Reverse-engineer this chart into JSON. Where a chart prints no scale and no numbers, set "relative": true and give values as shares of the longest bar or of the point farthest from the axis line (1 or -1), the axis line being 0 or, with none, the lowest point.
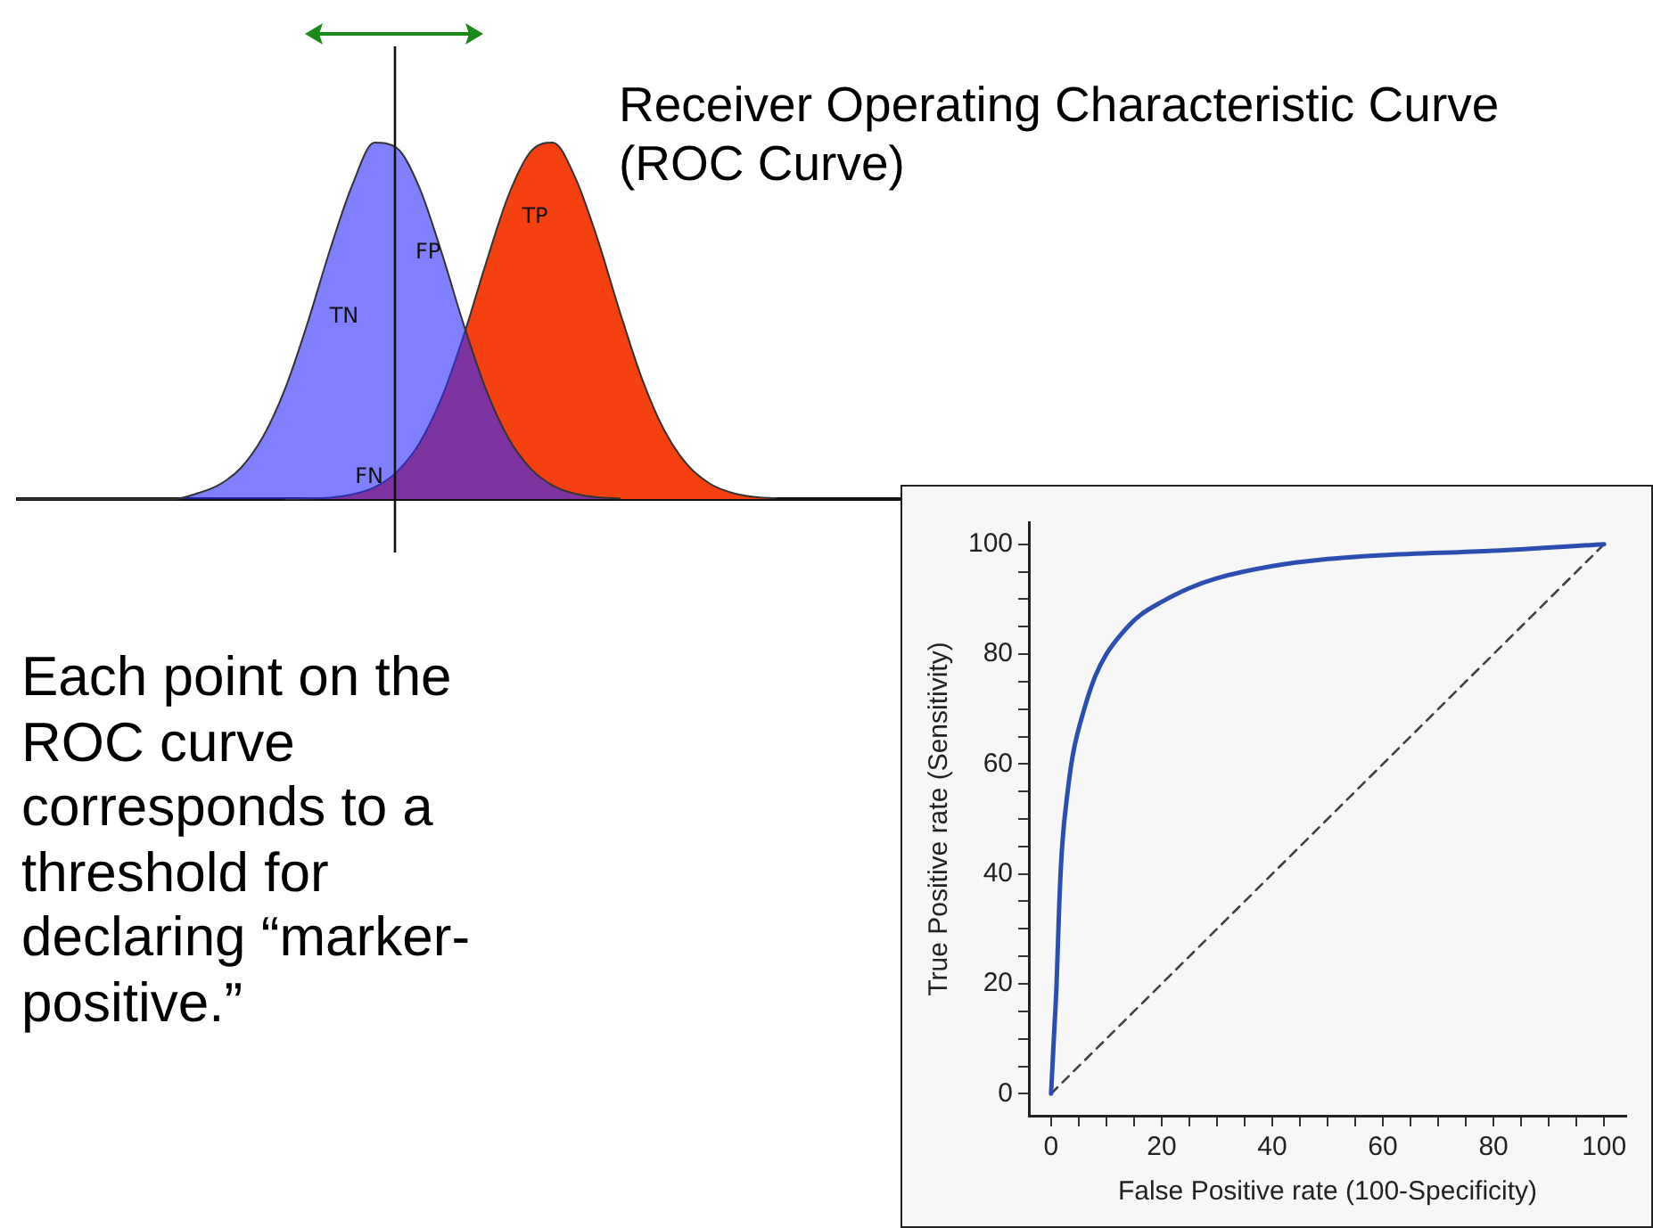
{
  "chart_data": [
    {
      "type": "area",
      "relative": true,
      "legend": false,
      "marker": "none",
      "categories": [
        null,
        null,
        null,
        null,
        null,
        null,
        null,
        null,
        null,
        null,
        null,
        null,
        null,
        null,
        null,
        null,
        null,
        null,
        null,
        null,
        null,
        null,
        null,
        null,
        null,
        null,
        null,
        null,
        null,
        null,
        null,
        null,
        null,
        null,
        null,
        null,
        null,
        null,
        null,
        null,
        null
      ],
      "series": [
        {
          "color": "#8080ff",
          "values": [
            0,
            0,
            0,
            0,
            0,
            0,
            0,
            0,
            0.015,
            0.039,
            0.087,
            0.175,
            0.311,
            0.494,
            0.698,
            0.88,
            1,
            0.985,
            0.876,
            0.694,
            0.49,
            0.308,
            0.172,
            0.086,
            0.038,
            0.015,
            0.005,
            0.002,
            null,
            null,
            null,
            null,
            null,
            null,
            null,
            null,
            null,
            null,
            null,
            null,
            null
          ]
        },
        {
          "color": "#f54010",
          "values": [
            null,
            null,
            null,
            null,
            null,
            null,
            null,
            null,
            null,
            null,
            null,
            null,
            0,
            0.001,
            0.004,
            0.013,
            0.033,
            0.076,
            0.155,
            0.282,
            0.458,
            0.661,
            0.85,
            0.974,
            1,
            0.903,
            0.731,
            0.527,
            0.338,
            0.193,
            0.099,
            0.045,
            0.018,
            0.006,
            0.002,
            null,
            null,
            null,
            null,
            null,
            null
          ]
        }
      ],
      "annotations": [
        "TN",
        "FP",
        "TP",
        "FN"
      ]
    },
    {
      "type": "line",
      "title": "Receiver Operating Characteristic Curve (ROC Curve)",
      "xlabel": "False Positive rate (100-Specificity)",
      "ylabel": "True Positive rate (Sensitivity)",
      "xlim": [
        -4,
        104
      ],
      "ylim": [
        -4,
        104
      ],
      "xticks": [
        0,
        {
          "value": 5,
          "label": null
        },
        {
          "value": 10,
          "label": null
        },
        {
          "value": 15,
          "label": null
        },
        20,
        {
          "value": 25,
          "label": null
        },
        {
          "value": 30,
          "label": null
        },
        {
          "value": 35,
          "label": null
        },
        40,
        {
          "value": 45,
          "label": null
        },
        {
          "value": 50,
          "label": null
        },
        {
          "value": 55,
          "label": null
        },
        60,
        {
          "value": 65,
          "label": null
        },
        {
          "value": 70,
          "label": null
        },
        {
          "value": 75,
          "label": null
        },
        80,
        {
          "value": 85,
          "label": null
        },
        {
          "value": 90,
          "label": null
        },
        {
          "value": 95,
          "label": null
        },
        100
      ],
      "yticks": [
        0,
        {
          "value": 5,
          "label": null
        },
        {
          "value": 10,
          "label": null
        },
        {
          "value": 15,
          "label": null
        },
        20,
        {
          "value": 25,
          "label": null
        },
        {
          "value": 30,
          "label": null
        },
        {
          "value": 35,
          "label": null
        },
        40,
        {
          "value": 45,
          "label": null
        },
        {
          "value": 50,
          "label": null
        },
        {
          "value": 55,
          "label": null
        },
        60,
        {
          "value": 65,
          "label": null
        },
        {
          "value": 70,
          "label": null
        },
        {
          "value": 75,
          "label": null
        },
        80,
        {
          "value": 85,
          "label": null
        },
        {
          "value": 90,
          "label": null
        },
        {
          "value": 95,
          "label": null
        },
        100
      ],
      "grid": false,
      "legend": false,
      "marker": "none",
      "series": [
        {
          "color": "#2a4fb0",
          "line_style": "solid",
          "x": [
            0,
            0.5,
            1,
            1.5,
            2,
            3,
            4,
            6,
            8,
            10,
            13,
            16,
            20,
            25,
            30,
            40,
            50,
            60,
            80,
            100
          ],
          "values": [
            0,
            10,
            20,
            35,
            45,
            55,
            62,
            70,
            76,
            80,
            84,
            87,
            89.5,
            92,
            93.8,
            96,
            97.3,
            98,
            98.8,
            100
          ]
        },
        {
          "color": "#404040",
          "line_style": "dashed",
          "x": [
            0,
            100
          ],
          "values": [
            0,
            100
          ]
        }
      ],
      "annotations": [
        "Each point on the ROC curve corresponds to a threshold for declaring “marker-positive.”"
      ]
    }
  ]
}
